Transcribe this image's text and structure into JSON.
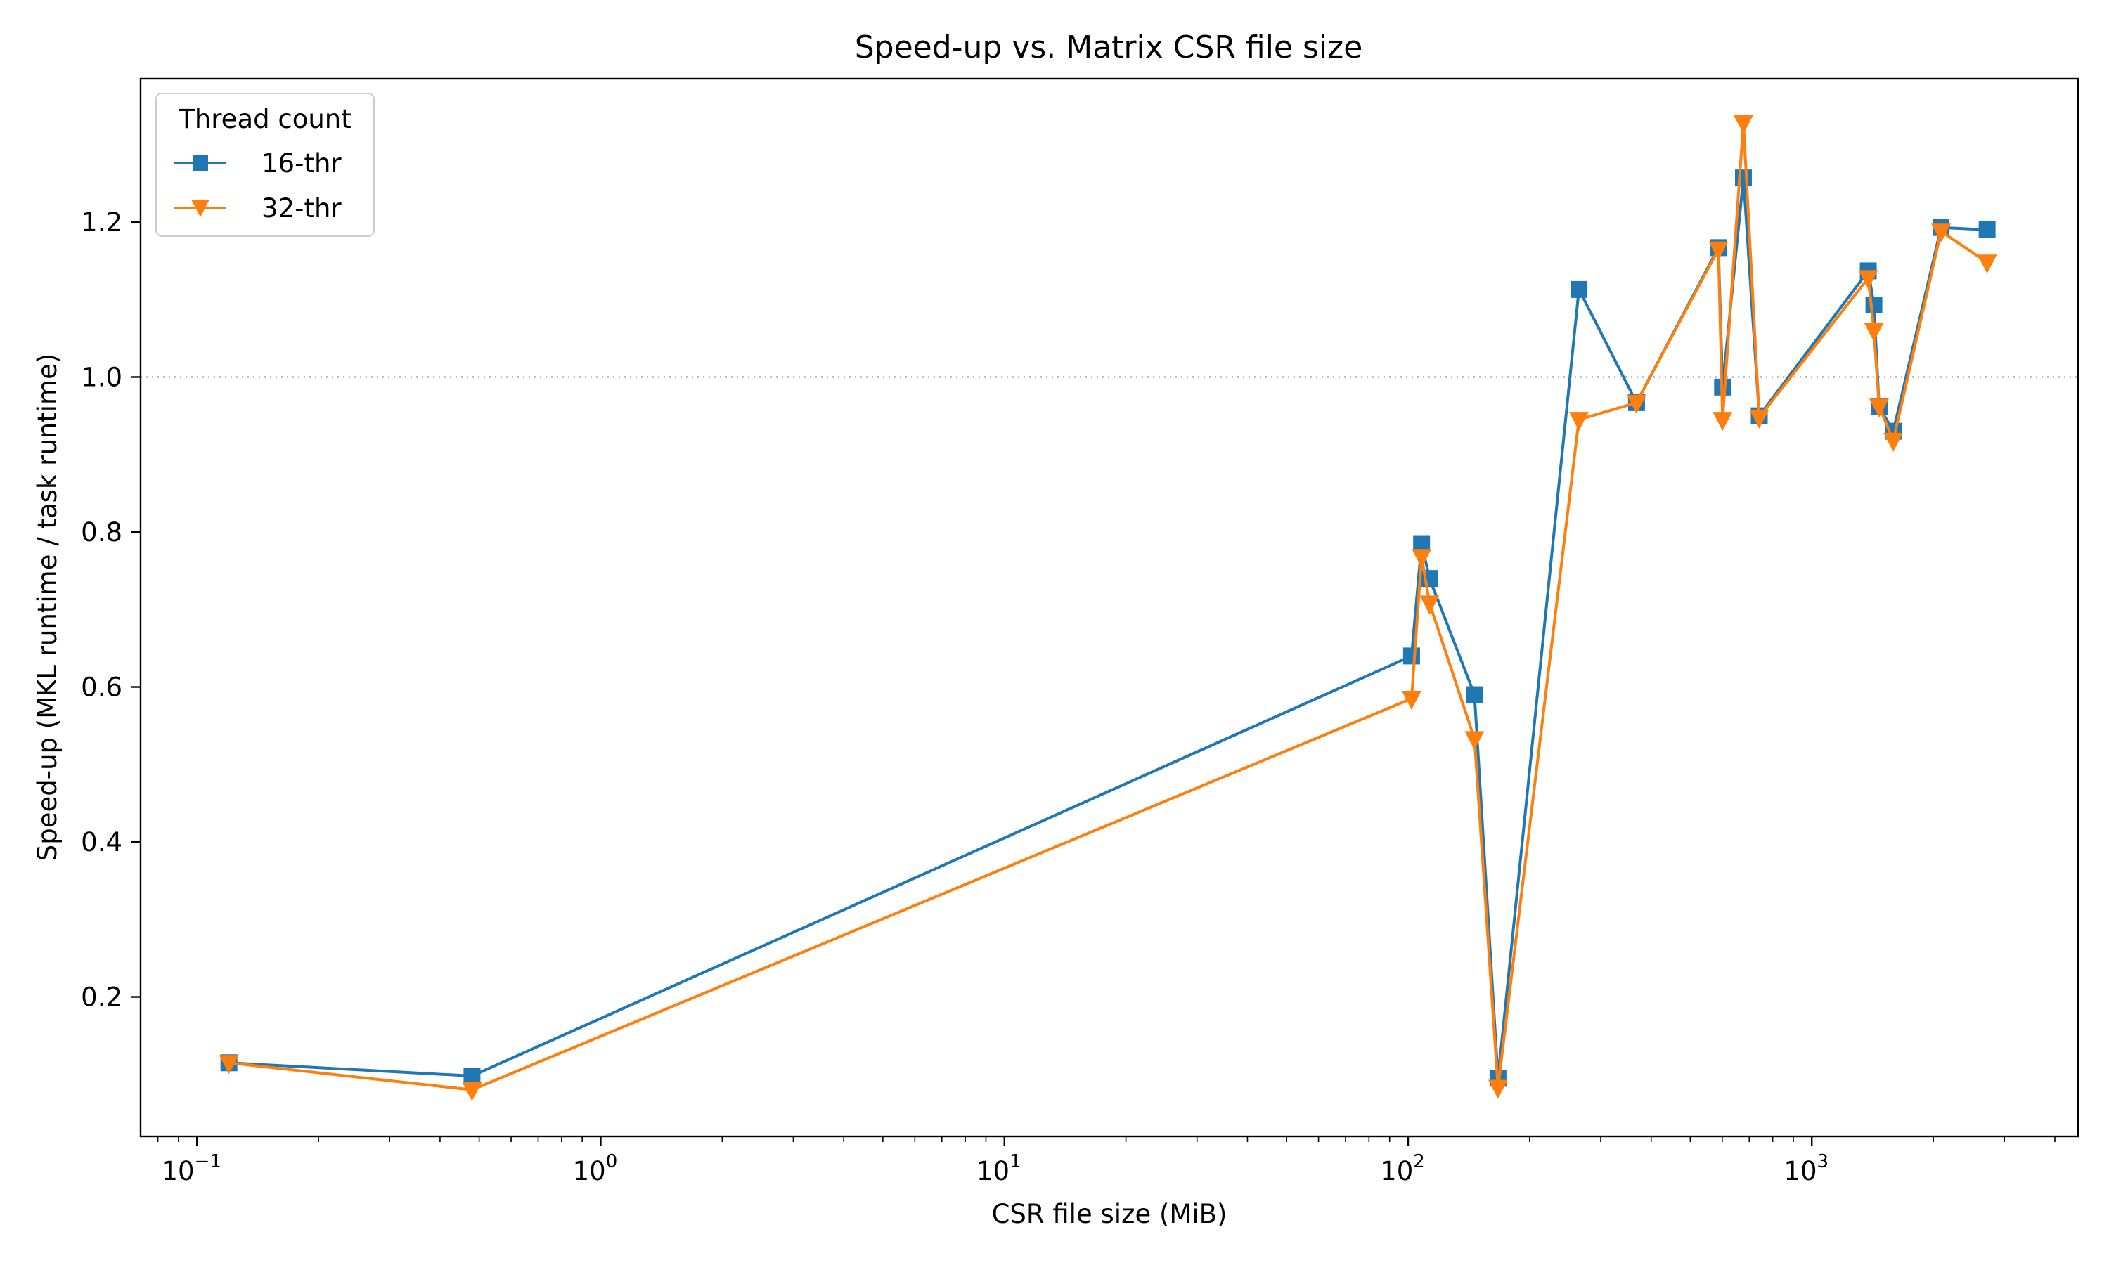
{
  "chart_data": {
    "type": "line",
    "title": "Speed-up vs. Matrix CSR file size",
    "xlabel": "CSR file size (MiB)",
    "ylabel": "Speed-up (MKL runtime / task runtime)",
    "xscale": "log",
    "xlim": [
      0.0725,
      4566
    ],
    "ylim": [
      0.02,
      1.385
    ],
    "x_ticks": [
      {
        "value": 0.1,
        "base": "10",
        "exp": "−1"
      },
      {
        "value": 1,
        "base": "10",
        "exp": "0"
      },
      {
        "value": 10,
        "base": "10",
        "exp": "1"
      },
      {
        "value": 100,
        "base": "10",
        "exp": "2"
      },
      {
        "value": 1000,
        "base": "10",
        "exp": "3"
      }
    ],
    "y_ticks": [
      {
        "value": 0.2,
        "label": "0.2"
      },
      {
        "value": 0.4,
        "label": "0.4"
      },
      {
        "value": 0.6,
        "label": "0.6"
      },
      {
        "value": 0.8,
        "label": "0.8"
      },
      {
        "value": 1.0,
        "label": "1.0"
      },
      {
        "value": 1.2,
        "label": "1.2"
      }
    ],
    "reference_line": {
      "y": 1.0,
      "style": "dotted",
      "color": "#808080"
    },
    "grid": false,
    "legend": {
      "title": "Thread count",
      "placement": "top-left"
    },
    "series": [
      {
        "name": "16-thr",
        "color": "#1f77b4",
        "marker": "square",
        "points": [
          {
            "x": 0.12,
            "y": 0.115
          },
          {
            "x": 0.48,
            "y": 0.098
          },
          {
            "x": 102,
            "y": 0.64
          },
          {
            "x": 108,
            "y": 0.785
          },
          {
            "x": 113,
            "y": 0.74
          },
          {
            "x": 146,
            "y": 0.59
          },
          {
            "x": 167,
            "y": 0.095
          },
          {
            "x": 265,
            "y": 1.113
          },
          {
            "x": 368,
            "y": 0.967
          },
          {
            "x": 587,
            "y": 1.167
          },
          {
            "x": 601,
            "y": 0.987
          },
          {
            "x": 677,
            "y": 1.257
          },
          {
            "x": 741,
            "y": 0.95
          },
          {
            "x": 1380,
            "y": 1.137
          },
          {
            "x": 1425,
            "y": 1.093
          },
          {
            "x": 1468,
            "y": 0.962
          },
          {
            "x": 1591,
            "y": 0.93
          },
          {
            "x": 2090,
            "y": 1.193
          },
          {
            "x": 2718,
            "y": 1.19
          }
        ]
      },
      {
        "name": "32-thr",
        "color": "#ff7f0e",
        "marker": "triangle-down",
        "points": [
          {
            "x": 0.12,
            "y": 0.115
          },
          {
            "x": 0.48,
            "y": 0.08
          },
          {
            "x": 102,
            "y": 0.585
          },
          {
            "x": 108,
            "y": 0.768
          },
          {
            "x": 113,
            "y": 0.708
          },
          {
            "x": 146,
            "y": 0.533
          },
          {
            "x": 167,
            "y": 0.083
          },
          {
            "x": 265,
            "y": 0.945
          },
          {
            "x": 368,
            "y": 0.967
          },
          {
            "x": 587,
            "y": 1.165
          },
          {
            "x": 601,
            "y": 0.945
          },
          {
            "x": 677,
            "y": 1.328
          },
          {
            "x": 741,
            "y": 0.948
          },
          {
            "x": 1380,
            "y": 1.128
          },
          {
            "x": 1425,
            "y": 1.06
          },
          {
            "x": 1468,
            "y": 0.962
          },
          {
            "x": 1591,
            "y": 0.918
          },
          {
            "x": 2090,
            "y": 1.188
          },
          {
            "x": 2718,
            "y": 1.148
          }
        ]
      }
    ]
  }
}
